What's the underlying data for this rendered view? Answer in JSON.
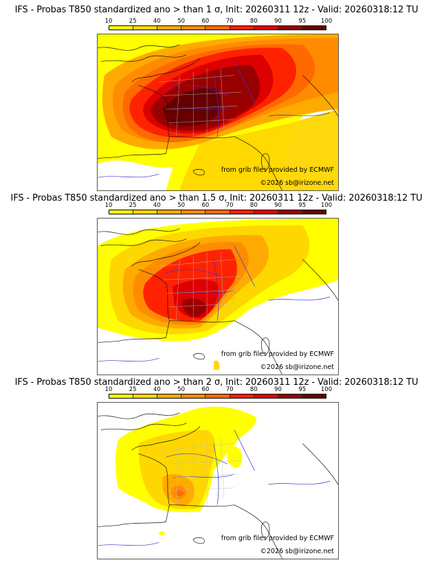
{
  "panels": [
    {
      "title": "IFS - Probas T850  standardized ano > than 1 σ, Init: 20260311 12z - Valid: 20260318:12 TU",
      "threshold_sigma": "1",
      "credit_line1": "from grib files provided by ECMWF",
      "credit_line2": "©2026 sb@irizone.net"
    },
    {
      "title": "IFS - Probas T850  standardized ano > than 1.5 σ, Init: 20260311 12z - Valid: 20260318:12 TU",
      "threshold_sigma": "1.5",
      "credit_line1": "from grib files provided by ECMWF",
      "credit_line2": "©2026 sb@irizone.net"
    },
    {
      "title": "IFS - Probas T850  standardized ano > than 2 σ, Init: 20260311 12z - Valid: 20260318:12 TU",
      "threshold_sigma": "2",
      "credit_line1": "from grib files provided by ECMWF",
      "credit_line2": "©2026 sb@irizone.net"
    }
  ],
  "colorbar": {
    "ticks": [
      "10",
      "25",
      "40",
      "50",
      "60",
      "70",
      "80",
      "90",
      "95",
      "100"
    ],
    "colors": [
      "#FFFF00",
      "#FFD700",
      "#FFAA00",
      "#FF8C00",
      "#FF6A00",
      "#FF2200",
      "#DD0000",
      "#990000",
      "#660000"
    ]
  },
  "map_info": {
    "model": "IFS",
    "variable": "T850 standardized anomaly probability",
    "init": "20260311 12z",
    "valid": "20260318:12 TU",
    "region": "Western Europe (France centered)",
    "max_probability_class": {
      "1_sigma": "95-100",
      "1.5_sigma": "90-95",
      "2_sigma": "60-70"
    }
  }
}
